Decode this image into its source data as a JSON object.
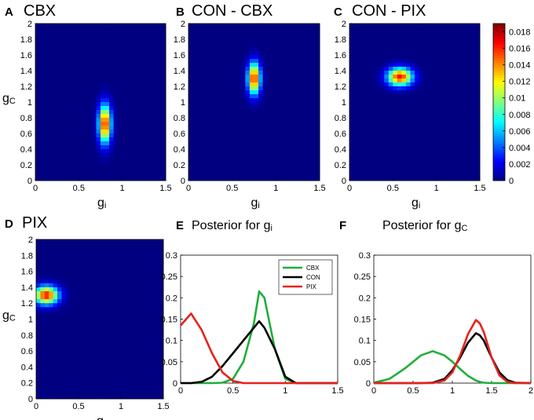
{
  "figure": {
    "panels": [
      {
        "letter": "A",
        "title": "CBX"
      },
      {
        "letter": "B",
        "title": "CON - CBX"
      },
      {
        "letter": "C",
        "title": "CON - PIX"
      },
      {
        "letter": "D",
        "title": "PIX"
      },
      {
        "letter": "E",
        "title": "Posterior for g",
        "title_sub": "i"
      },
      {
        "letter": "F",
        "title": "Posterior for g",
        "title_sub": "C"
      }
    ]
  },
  "chart_data": [
    {
      "type": "heatmap",
      "panel": "A",
      "x_range": [
        0,
        1.5
      ],
      "y_range": [
        0,
        2
      ],
      "x_ticks": [
        "0",
        "0.5",
        "1",
        "1.5"
      ],
      "y_ticks": [
        "0",
        "0.2",
        "0.4",
        "0.6",
        "0.8",
        "1",
        "1.2",
        "1.4",
        "1.6",
        "1.8",
        "2"
      ],
      "xlabel": "g",
      "xlabel_sub": "i",
      "ylabel": "g",
      "ylabel_sub": "C",
      "blob": {
        "center_gi": 0.8,
        "center_gc": 0.72,
        "sd_gi": 0.05,
        "sd_gc": 0.17,
        "peak": 0.0165
      }
    },
    {
      "type": "heatmap",
      "panel": "B",
      "x_range": [
        0,
        1.5
      ],
      "y_range": [
        0,
        2
      ],
      "x_ticks": [
        "0",
        "0.5",
        "1",
        "1.5"
      ],
      "y_ticks": [
        "0",
        "0.2",
        "0.4",
        "0.6",
        "0.8",
        "1",
        "1.2",
        "1.4",
        "1.6",
        "1.8",
        "2"
      ],
      "xlabel": "g",
      "xlabel_sub": "i",
      "ylabel": "",
      "ylabel_sub": "",
      "blob": {
        "center_gi": 0.75,
        "center_gc": 1.3,
        "sd_gi": 0.05,
        "sd_gc": 0.14,
        "peak": 0.0165
      }
    },
    {
      "type": "heatmap",
      "panel": "C",
      "x_range": [
        0,
        1.5
      ],
      "y_range": [
        0,
        2
      ],
      "x_ticks": [
        "0",
        "0.5",
        "1",
        "1.5"
      ],
      "y_ticks": [
        "0",
        "0.2",
        "0.4",
        "0.6",
        "0.8",
        "1",
        "1.2",
        "1.4",
        "1.6",
        "1.8",
        "2"
      ],
      "xlabel": "g",
      "xlabel_sub": "i",
      "ylabel": "",
      "ylabel_sub": "",
      "blob": {
        "center_gi": 0.58,
        "center_gc": 1.32,
        "sd_gi": 0.1,
        "sd_gc": 0.08,
        "peak": 0.0165
      }
    },
    {
      "type": "heatmap",
      "panel": "D",
      "x_range": [
        0,
        1.5
      ],
      "y_range": [
        0,
        2
      ],
      "x_ticks": [
        "0",
        "0.5",
        "1",
        "1.5"
      ],
      "y_ticks": [
        "0",
        "0.2",
        "0.4",
        "0.6",
        "0.8",
        "1",
        "1.2",
        "1.4",
        "1.6",
        "1.8",
        "2"
      ],
      "xlabel": "g",
      "xlabel_sub": "i",
      "ylabel": "g",
      "ylabel_sub": "C",
      "blob": {
        "center_gi": 0.12,
        "center_gc": 1.3,
        "sd_gi": 0.1,
        "sd_gc": 0.08,
        "peak": 0.0165
      }
    },
    {
      "type": "colorbar",
      "range": [
        0,
        0.019
      ],
      "tick_values": [
        0,
        0.002,
        0.004,
        0.006,
        0.008,
        0.01,
        0.012,
        0.014,
        0.016,
        0.018
      ],
      "tick_labels": [
        "0",
        "0.002",
        "0.004",
        "0.006",
        "0.008",
        "0.01",
        "0.012",
        "0.014",
        "0.016",
        "0.018"
      ]
    },
    {
      "type": "line",
      "panel": "E",
      "x": [
        0,
        0.1,
        0.2,
        0.3,
        0.4,
        0.5,
        0.6,
        0.7,
        0.75,
        0.8,
        0.9,
        1.0,
        1.1,
        1.2,
        1.3,
        1.4,
        1.5
      ],
      "xlim": [
        0,
        1.5
      ],
      "ylim": [
        0,
        0.3
      ],
      "x_ticks": [
        "0",
        "0.5",
        "1",
        "1.5"
      ],
      "y_ticks": [
        "0",
        "0.05",
        "0.1",
        "0.15",
        "0.2",
        "0.25",
        "0.3"
      ],
      "xlabel": "",
      "ylabel": "",
      "legend": {
        "position": "top-right"
      },
      "series": [
        {
          "name": "CBX",
          "color": "#1fae3a",
          "values": [
            0,
            0,
            0,
            0,
            0.001,
            0.01,
            0.05,
            0.14,
            0.215,
            0.2,
            0.08,
            0.01,
            0,
            0,
            0,
            0,
            0
          ]
        },
        {
          "name": "CON",
          "color": "#000000",
          "values": [
            0,
            0,
            0.003,
            0.015,
            0.04,
            0.07,
            0.1,
            0.13,
            0.145,
            0.13,
            0.08,
            0.015,
            0,
            0,
            0,
            0,
            0
          ]
        },
        {
          "name": "PIX",
          "color": "#e8211c",
          "values": [
            0.135,
            0.163,
            0.125,
            0.07,
            0.025,
            0.005,
            0,
            0,
            0,
            0,
            0,
            0,
            0,
            0,
            0,
            0,
            0
          ]
        }
      ]
    },
    {
      "type": "line",
      "panel": "F",
      "x": [
        0,
        0.2,
        0.4,
        0.6,
        0.75,
        0.9,
        1.0,
        1.1,
        1.2,
        1.3,
        1.35,
        1.4,
        1.5,
        1.6,
        1.7,
        1.8,
        2.0
      ],
      "xlim": [
        0,
        2
      ],
      "ylim": [
        0,
        0.3
      ],
      "x_ticks": [
        "0",
        "0.5",
        "1",
        "1.5",
        "2"
      ],
      "y_ticks": [
        "0",
        "0.05",
        "0.1",
        "0.15",
        "0.2",
        "0.25",
        "0.3"
      ],
      "xlabel": "",
      "ylabel": "",
      "series": [
        {
          "name": "CBX",
          "color": "#1fae3a",
          "values": [
            0.001,
            0.01,
            0.035,
            0.065,
            0.075,
            0.065,
            0.05,
            0.033,
            0.017,
            0.006,
            0.003,
            0.001,
            0,
            0,
            0,
            0,
            0
          ]
        },
        {
          "name": "CON",
          "color": "#000000",
          "values": [
            0,
            0,
            0,
            0,
            0.001,
            0.01,
            0.03,
            0.06,
            0.095,
            0.117,
            0.112,
            0.1,
            0.06,
            0.025,
            0.007,
            0.001,
            0
          ]
        },
        {
          "name": "PIX",
          "color": "#e8211c",
          "values": [
            0,
            0,
            0,
            0,
            0,
            0.006,
            0.025,
            0.065,
            0.115,
            0.148,
            0.14,
            0.12,
            0.06,
            0.018,
            0.003,
            0,
            0
          ]
        }
      ]
    }
  ]
}
